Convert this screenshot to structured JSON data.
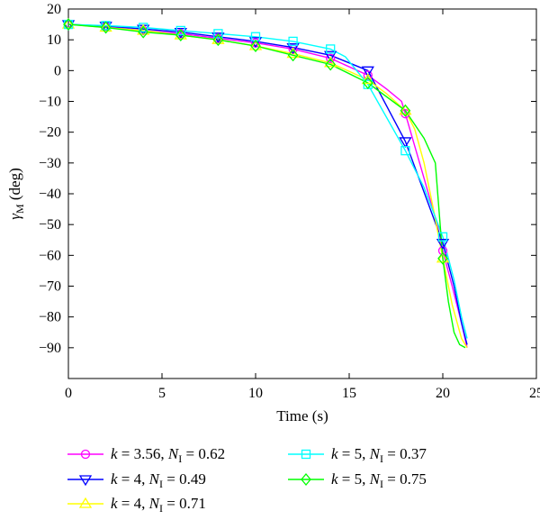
{
  "chart_data": {
    "type": "line",
    "title": "",
    "xlabel": "Time (s)",
    "ylabel": "γM (deg)",
    "ylabel_parts": {
      "symbol": "γ",
      "subscript": "M",
      "unit": "(deg)"
    },
    "xlim": [
      0,
      25
    ],
    "ylim": [
      -100,
      20
    ],
    "xticks": [
      0,
      5,
      10,
      15,
      20,
      25
    ],
    "yticks": [
      20,
      10,
      0,
      -10,
      -20,
      -30,
      -40,
      -50,
      -60,
      -70,
      -80,
      -90
    ],
    "grid": false,
    "legend_position": "bottom",
    "series": [
      {
        "name": "k = 3.56, NI = 0.62",
        "label_parts": {
          "k": "3.56",
          "N": "0.62"
        },
        "color": "#ff00ff",
        "marker": "circle",
        "x": [
          0,
          2,
          4,
          6,
          8,
          10,
          12,
          14,
          16,
          17,
          17.8,
          18,
          19,
          19.7,
          20,
          20.5,
          21,
          21.3
        ],
        "y": [
          15,
          14.2,
          13,
          12,
          10.5,
          9,
          7,
          4,
          -1.5,
          -6,
          -10,
          -14,
          -35,
          -50,
          -58.5,
          -70,
          -82,
          -90
        ],
        "marker_x": [
          0,
          2,
          4,
          6,
          8,
          10,
          12,
          14,
          16,
          18,
          20
        ],
        "marker_y": [
          15,
          14.2,
          13,
          12,
          10.5,
          9,
          7,
          4,
          -1.5,
          -14,
          -58.5
        ]
      },
      {
        "name": "k = 4, NI = 0.49",
        "label_parts": {
          "k": "4",
          "N": "0.49"
        },
        "color": "#0000ff",
        "marker": "triangle-down",
        "x": [
          0,
          2,
          4,
          6,
          8,
          10,
          12,
          14,
          16,
          18,
          20,
          20.6,
          21,
          21.3
        ],
        "y": [
          15,
          14.5,
          13.5,
          12.5,
          11,
          9.5,
          7.5,
          5,
          0,
          -23,
          -56,
          -70,
          -82,
          -89
        ],
        "marker_x": [
          0,
          2,
          4,
          6,
          8,
          10,
          12,
          14,
          16,
          18,
          20
        ],
        "marker_y": [
          15,
          14.5,
          13.5,
          12.5,
          11,
          9.5,
          7.5,
          5,
          0,
          -23,
          -56
        ]
      },
      {
        "name": "k = 4, NI = 0.71",
        "label_parts": {
          "k": "4",
          "N": "0.71"
        },
        "color": "#ffff00",
        "marker": "triangle-up",
        "x": [
          0,
          2,
          4,
          6,
          8,
          10,
          12,
          14,
          16,
          17,
          18,
          18.5,
          19,
          19.5,
          20,
          20.5,
          21,
          21.3
        ],
        "y": [
          15,
          14,
          13,
          11.5,
          10,
          8,
          5.5,
          2.5,
          -3,
          -7.5,
          -13,
          -19,
          -30,
          -45,
          -61,
          -76,
          -87,
          -90
        ],
        "marker_x": [
          0,
          2,
          4,
          6,
          8,
          10,
          12,
          14,
          16,
          18,
          20
        ],
        "marker_y": [
          15,
          14,
          13,
          11.5,
          10,
          8,
          5.5,
          2.5,
          -3,
          -13,
          -61
        ]
      },
      {
        "name": "k = 5, NI = 0.37",
        "label_parts": {
          "k": "5",
          "N": "0.37"
        },
        "color": "#00ffff",
        "marker": "square",
        "x": [
          0,
          2,
          4,
          6,
          8,
          10,
          12,
          14,
          14.8,
          16,
          18,
          19,
          20,
          20.6,
          21,
          21.3
        ],
        "y": [
          15,
          14.6,
          14,
          13,
          12,
          11,
          9.5,
          7,
          4.5,
          -4.5,
          -26,
          -38,
          -54,
          -68,
          -80,
          -87
        ],
        "marker_x": [
          0,
          2,
          4,
          6,
          8,
          10,
          12,
          14,
          16,
          18,
          20
        ],
        "marker_y": [
          15,
          14.6,
          14,
          13,
          12,
          11,
          9.5,
          7,
          -4.5,
          -26,
          -54
        ]
      },
      {
        "name": "k = 5, NI = 0.75",
        "label_parts": {
          "k": "5",
          "N": "0.75"
        },
        "color": "#00ff00",
        "marker": "diamond",
        "x": [
          0,
          2,
          4,
          6,
          8,
          10,
          12,
          14,
          16,
          18,
          19,
          19.6,
          20,
          20.3,
          20.6,
          20.9,
          21.2
        ],
        "y": [
          15,
          14,
          12.5,
          11.5,
          10,
          8,
          5,
          2,
          -4,
          -13,
          -22,
          -30,
          -61,
          -75,
          -85,
          -89,
          -90
        ],
        "marker_x": [
          0,
          2,
          4,
          6,
          8,
          10,
          12,
          14,
          16,
          18,
          20
        ],
        "marker_y": [
          15,
          14,
          12.5,
          11.5,
          10,
          8,
          5,
          2,
          -4,
          -13,
          -61
        ]
      }
    ]
  }
}
